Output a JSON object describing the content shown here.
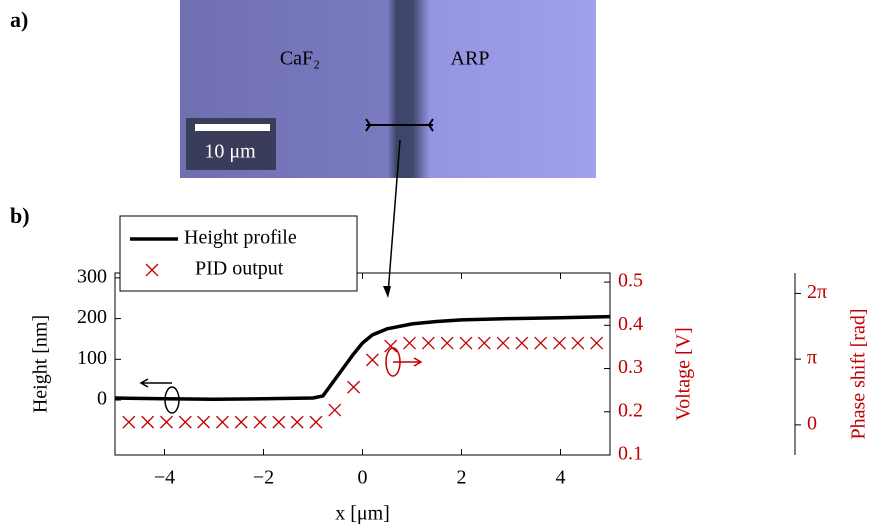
{
  "image": {
    "panel_label": "a)",
    "left_label": "CaF₂",
    "right_label": "ARP",
    "scale_bar": "10 μm"
  },
  "chart_data": {
    "type": "line",
    "panel_label": "b)",
    "xlabel": "x [μm]",
    "ylabel": "Height [nm]",
    "y2label": "Voltage [V]",
    "y3label": "Phase shift [rad]",
    "xlim": [
      -5,
      5
    ],
    "xticks": [
      {
        "value": -4,
        "label": "−4"
      },
      {
        "value": -2,
        "label": "−2"
      },
      0,
      2,
      4
    ],
    "ylim": [
      -135,
      312
    ],
    "yticks": [
      0,
      100,
      200,
      300
    ],
    "y2lim": [
      0.1,
      0.521
    ],
    "y2ticks": [
      0.1,
      0.2,
      0.3,
      0.4,
      0.5
    ],
    "y3lim": [
      -1.44,
      7.26
    ],
    "y3ticks": [
      0,
      {
        "value": 3.1416,
        "label": "π"
      },
      {
        "value": 6.2832,
        "label": "2π"
      }
    ],
    "legend": "upper left",
    "series": [
      {
        "name": "Height profile",
        "color": "#000000",
        "marker": "line",
        "x": [
          -5,
          -4,
          -3,
          -2,
          -1,
          -0.8,
          -0.5,
          -0.2,
          0,
          0.2,
          0.5,
          1,
          1.5,
          2,
          3,
          4,
          5
        ],
        "values": [
          5,
          3,
          2,
          3,
          5,
          10,
          60,
          110,
          140,
          160,
          175,
          187,
          193,
          197,
          200,
          202,
          205
        ]
      },
      {
        "name": "PID output",
        "color": "#c00000",
        "marker": "x",
        "axis": "y2",
        "x": [
          -4.72,
          -4.34,
          -3.96,
          -3.58,
          -3.21,
          -2.83,
          -2.45,
          -2.07,
          -1.69,
          -1.32,
          -0.94,
          -0.56,
          -0.18,
          0.2,
          0.57,
          0.95,
          1.33,
          1.71,
          2.09,
          2.46,
          2.84,
          3.22,
          3.6,
          3.98,
          4.35,
          4.73
        ],
        "values": [
          0.176,
          0.176,
          0.176,
          0.176,
          0.176,
          0.176,
          0.176,
          0.176,
          0.176,
          0.176,
          0.176,
          0.204,
          0.257,
          0.32,
          0.352,
          0.359,
          0.359,
          0.359,
          0.359,
          0.359,
          0.359,
          0.359,
          0.359,
          0.359,
          0.359,
          0.359
        ]
      }
    ]
  }
}
